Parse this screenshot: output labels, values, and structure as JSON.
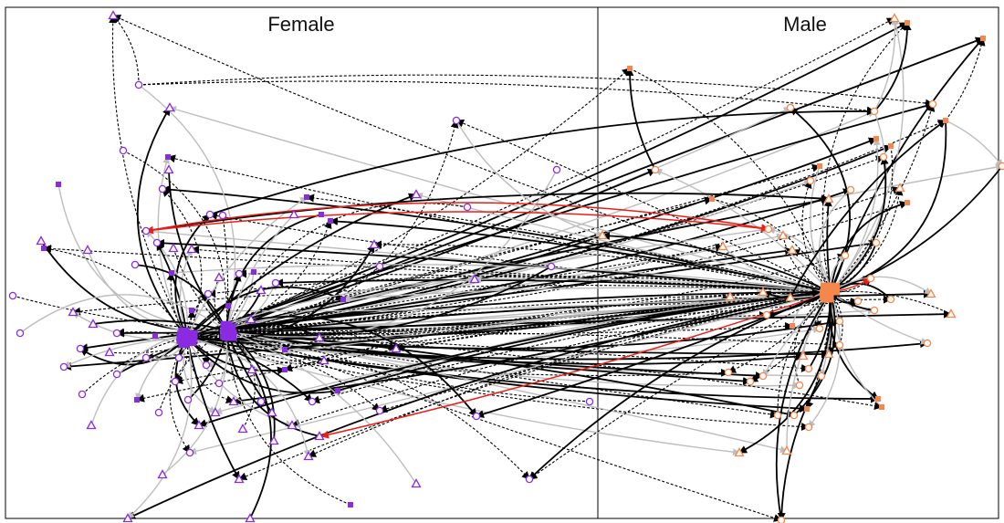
{
  "panels": {
    "left_label": "Female",
    "right_label": "Male"
  },
  "colors": {
    "female": "#8a2be2",
    "male": "#f4874b",
    "edge_solid": "#000000",
    "edge_dashed": "#000000",
    "edge_gray": "#bdbdbd",
    "edge_highlight": "#e8201a",
    "frame": "#000000"
  },
  "legend": "none",
  "node_shapes": [
    "open-circle",
    "open-triangle",
    "filled-square"
  ]
}
